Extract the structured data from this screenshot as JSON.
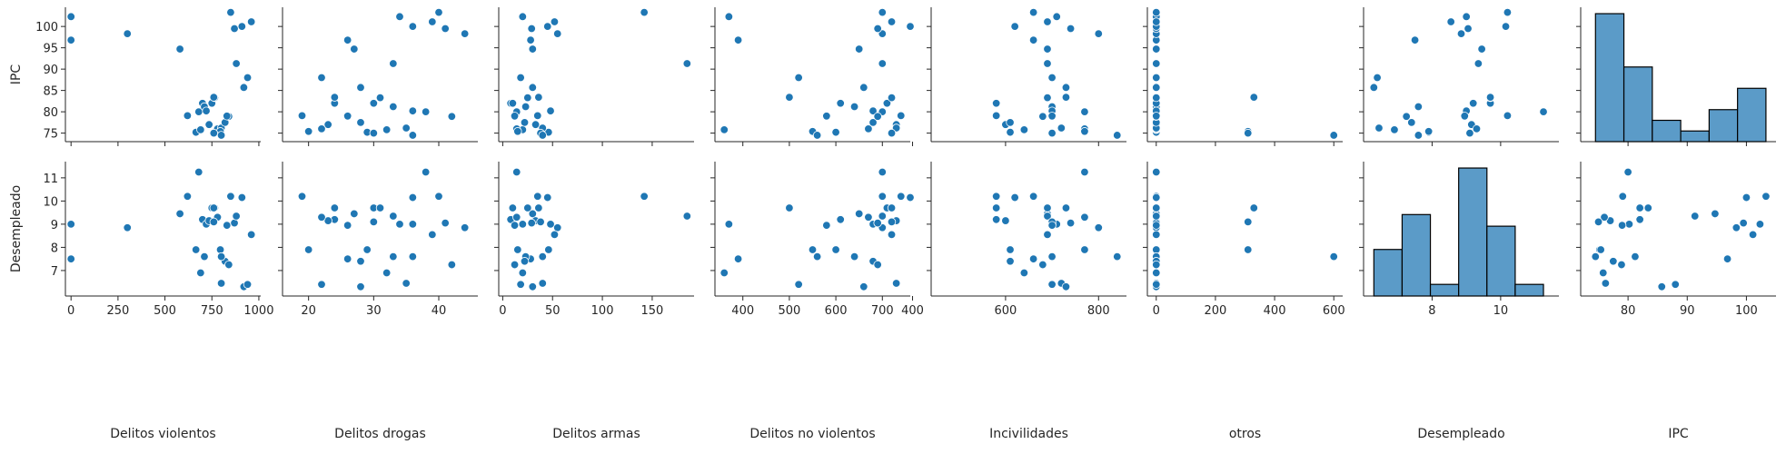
{
  "chart_data": {
    "type": "scatter",
    "kind": "pairplot",
    "point_color": "#1f77b4",
    "hist_fill": "#5b9bc8",
    "rows": [
      "IPC",
      "Desempleado"
    ],
    "columns": [
      "Delitos violentos",
      "Delitos drogas",
      "Delitos armas",
      "Delitos no violentos",
      "Incivilidades",
      "otros",
      "Desempleado",
      "IPC"
    ],
    "xlim": [
      [
        -30,
        1010
      ],
      [
        16,
        46
      ],
      [
        -4,
        192
      ],
      [
        340,
        760
      ],
      [
        440,
        860
      ],
      [
        -30,
        630
      ],
      [
        6.0,
        11.7
      ],
      [
        72,
        105
      ]
    ],
    "ylim": {
      "IPC": [
        73,
        104.5
      ],
      "Desempleado": [
        5.9,
        11.7
      ]
    },
    "xticks": [
      [
        0,
        250,
        500,
        750,
        1000
      ],
      [
        20,
        30,
        40
      ],
      [
        0,
        50,
        100,
        150
      ],
      [
        400,
        500,
        600,
        700
      ],
      [
        400,
        600,
        800
      ],
      [
        0,
        200,
        400,
        600
      ],
      [
        8,
        10
      ],
      [
        80,
        90,
        100
      ]
    ],
    "yticks": {
      "IPC": [
        75,
        80,
        85,
        90,
        95,
        100
      ],
      "Desempleado": [
        7,
        8,
        9,
        10,
        11
      ]
    },
    "records": [
      {
        "v": 0,
        "d": 34,
        "a": 20,
        "nv": 370,
        "inc": 710,
        "o": 0,
        "des": 9.0,
        "ipc": 102.3
      },
      {
        "v": 0,
        "d": 26,
        "a": 28,
        "nv": 390,
        "inc": 660,
        "o": 0,
        "des": 7.5,
        "ipc": 96.8
      },
      {
        "v": 300,
        "d": 44,
        "a": 55,
        "nv": 700,
        "inc": 800,
        "o": 0,
        "des": 8.85,
        "ipc": 98.3
      },
      {
        "v": 580,
        "d": 27,
        "a": 30,
        "nv": 650,
        "inc": 690,
        "o": 0,
        "des": 9.45,
        "ipc": 94.7
      },
      {
        "v": 620,
        "d": 19,
        "a": 35,
        "nv": 740,
        "inc": 580,
        "o": 0,
        "des": 10.2,
        "ipc": 79.1
      },
      {
        "v": 665,
        "d": 29,
        "a": 46,
        "nv": 600,
        "inc": 610,
        "o": 0,
        "des": 7.9,
        "ipc": 75.2
      },
      {
        "v": 680,
        "d": 38,
        "a": 14,
        "nv": 700,
        "inc": 770,
        "o": 0,
        "des": 11.25,
        "ipc": 80.0
      },
      {
        "v": 690,
        "d": 32,
        "a": 20,
        "nv": 360,
        "inc": 640,
        "o": 0,
        "des": 6.9,
        "ipc": 75.8
      },
      {
        "v": 700,
        "d": 24,
        "a": 8,
        "nv": 610,
        "inc": 580,
        "o": 0,
        "des": 9.2,
        "ipc": 82.0
      },
      {
        "v": 710,
        "d": 33,
        "a": 23,
        "nv": 640,
        "inc": 700,
        "o": 0,
        "des": 7.6,
        "ipc": 81.2
      },
      {
        "v": 720,
        "d": 36,
        "a": 48,
        "nv": 680,
        "inc": 700,
        "o": 0,
        "des": 9.0,
        "ipc": 80.2
      },
      {
        "v": 735,
        "d": 23,
        "a": 33,
        "nv": 730,
        "inc": 600,
        "o": 0,
        "des": 9.15,
        "ipc": 77.0
      },
      {
        "v": 750,
        "d": 30,
        "a": 10,
        "nv": 710,
        "inc": 580,
        "o": 0,
        "des": 9.7,
        "ipc": 82.0
      },
      {
        "v": 765,
        "d": 31,
        "a": 25,
        "nv": 720,
        "inc": 690,
        "o": 0,
        "des": 9.7,
        "ipc": 83.3
      },
      {
        "v": 780,
        "d": 22,
        "a": 14,
        "nv": 670,
        "inc": 770,
        "o": 0,
        "des": 9.3,
        "ipc": 76.0
      },
      {
        "v": 800,
        "d": 35,
        "a": 40,
        "nv": 730,
        "inc": 720,
        "o": 0,
        "des": 6.45,
        "ipc": 76.2
      },
      {
        "v": 820,
        "d": 28,
        "a": 22,
        "nv": 680,
        "inc": 610,
        "o": 0,
        "des": 7.4,
        "ipc": 77.5
      },
      {
        "v": 840,
        "d": 42,
        "a": 12,
        "nv": 690,
        "inc": 680,
        "o": 0,
        "des": 7.25,
        "ipc": 78.9
      },
      {
        "v": 850,
        "d": 40,
        "a": 142,
        "nv": 700,
        "inc": 660,
        "o": 0,
        "des": 10.2,
        "ipc": 103.3
      },
      {
        "v": 870,
        "d": 41,
        "a": 29,
        "nv": 690,
        "inc": 740,
        "o": 0,
        "des": 9.05,
        "ipc": 99.5
      },
      {
        "v": 880,
        "d": 33,
        "a": 185,
        "nv": 700,
        "inc": 690,
        "o": 0,
        "des": 9.35,
        "ipc": 91.3
      },
      {
        "v": 910,
        "d": 36,
        "a": 45,
        "nv": 760,
        "inc": 620,
        "o": 0,
        "des": 10.15,
        "ipc": 100.0
      },
      {
        "v": 920,
        "d": 28,
        "a": 30,
        "nv": 660,
        "inc": 730,
        "o": 0,
        "des": 6.3,
        "ipc": 85.7
      },
      {
        "v": 940,
        "d": 22,
        "a": 18,
        "nv": 520,
        "inc": 700,
        "o": 0,
        "des": 6.4,
        "ipc": 88.0
      },
      {
        "v": 960,
        "d": 39,
        "a": 52,
        "nv": 720,
        "inc": 690,
        "o": 0,
        "des": 8.55,
        "ipc": 101.1
      },
      {
        "v": 760,
        "d": 24,
        "a": 36,
        "nv": 500,
        "inc": 730,
        "o": 330,
        "des": 9.7,
        "ipc": 83.4
      },
      {
        "v": 795,
        "d": 20,
        "a": 15,
        "nv": 550,
        "inc": 770,
        "o": 310,
        "des": 7.9,
        "ipc": 75.4
      },
      {
        "v": 760,
        "d": 30,
        "a": 38,
        "nv": 720,
        "inc": 700,
        "o": 310,
        "des": 9.1,
        "ipc": 75.0
      },
      {
        "v": 800,
        "d": 36,
        "a": 40,
        "nv": 560,
        "inc": 840,
        "o": 600,
        "des": 7.6,
        "ipc": 74.5
      },
      {
        "v": 830,
        "d": 26,
        "a": 12,
        "nv": 580,
        "inc": 700,
        "o": 0,
        "des": 8.95,
        "ipc": 79.0
      }
    ]
  }
}
